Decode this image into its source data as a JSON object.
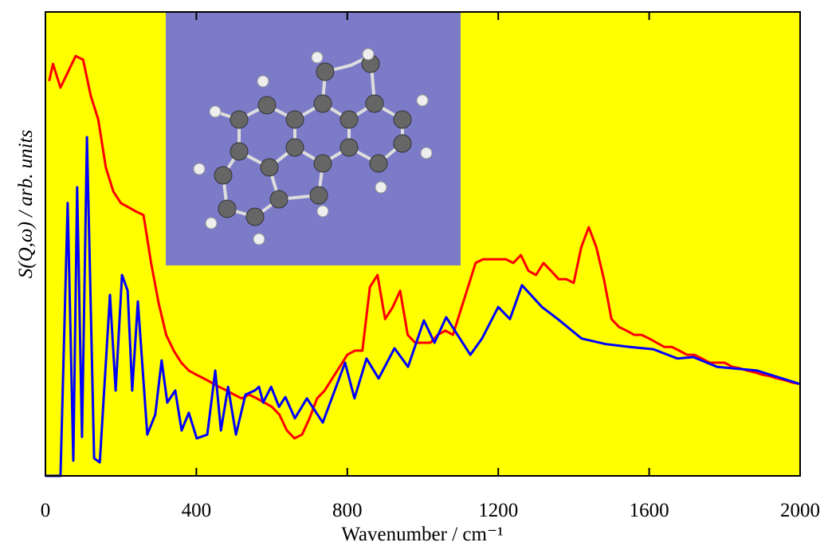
{
  "chart_data": {
    "type": "line",
    "x_label": "Wavenumber / cm⁻¹",
    "y_label": "S(Q,ω) / arb. units",
    "xlim": [
      0,
      2000
    ],
    "ylim": [
      0,
      1
    ],
    "xticks": [
      0,
      400,
      800,
      1200,
      1600,
      2000
    ],
    "background": "#ffff00",
    "series": [
      {
        "color": "#ff0000",
        "x": [
          10,
          20,
          40,
          60,
          80,
          100,
          120,
          140,
          160,
          180,
          200,
          220,
          240,
          260,
          280,
          300,
          320,
          340,
          360,
          380,
          400,
          420,
          440,
          460,
          480,
          500,
          520,
          540,
          560,
          580,
          600,
          620,
          640,
          660,
          680,
          700,
          720,
          740,
          760,
          780,
          800,
          820,
          840,
          860,
          880,
          900,
          920,
          940,
          960,
          980,
          1000,
          1020,
          1040,
          1060,
          1080,
          1100,
          1120,
          1140,
          1160,
          1180,
          1200,
          1220,
          1240,
          1260,
          1280,
          1300,
          1320,
          1340,
          1360,
          1380,
          1400,
          1420,
          1440,
          1460,
          1480,
          1500,
          1520,
          1540,
          1560,
          1580,
          1600,
          1620,
          1640,
          1660,
          1680,
          1700,
          1720,
          1740,
          1760,
          1780,
          1800,
          1820,
          1840,
          1860,
          1880,
          1900,
          1920,
          1940,
          1960,
          1980,
          2000
        ],
        "values": [
          0.851,
          0.888,
          0.837,
          0.871,
          0.905,
          0.897,
          0.82,
          0.768,
          0.665,
          0.613,
          0.588,
          0.579,
          0.57,
          0.562,
          0.459,
          0.373,
          0.304,
          0.27,
          0.244,
          0.227,
          0.218,
          0.21,
          0.201,
          0.192,
          0.184,
          0.175,
          0.167,
          0.175,
          0.167,
          0.158,
          0.149,
          0.132,
          0.098,
          0.081,
          0.089,
          0.124,
          0.167,
          0.184,
          0.21,
          0.235,
          0.261,
          0.27,
          0.27,
          0.407,
          0.433,
          0.338,
          0.363,
          0.399,
          0.304,
          0.287,
          0.287,
          0.287,
          0.304,
          0.313,
          0.304,
          0.356,
          0.407,
          0.459,
          0.467,
          0.467,
          0.467,
          0.467,
          0.459,
          0.476,
          0.442,
          0.433,
          0.459,
          0.442,
          0.424,
          0.424,
          0.416,
          0.493,
          0.536,
          0.493,
          0.424,
          0.338,
          0.321,
          0.313,
          0.304,
          0.304,
          0.296,
          0.287,
          0.278,
          0.278,
          0.27,
          0.261,
          0.261,
          0.253,
          0.244,
          0.244,
          0.244,
          0.235,
          0.232,
          0.227,
          0.223,
          0.218,
          0.215,
          0.21,
          0.206,
          0.201,
          0.198
        ]
      },
      {
        "color": "#0000ff",
        "x": [
          0,
          40,
          59,
          74,
          84,
          97,
          110,
          129,
          144,
          171,
          186,
          203,
          218,
          230,
          245,
          270,
          291,
          308,
          323,
          344,
          361,
          380,
          401,
          429,
          450,
          465,
          484,
          505,
          530,
          555,
          566,
          577,
          598,
          619,
          636,
          661,
          693,
          735,
          794,
          819,
          851,
          883,
          925,
          961,
          1003,
          1031,
          1062,
          1126,
          1157,
          1200,
          1231,
          1263,
          1316,
          1358,
          1421,
          1485,
          1548,
          1611,
          1675,
          1717,
          1780,
          1886,
          2000
        ],
        "values": [
          0,
          0,
          0.588,
          0.033,
          0.622,
          0.084,
          0.73,
          0.038,
          0.029,
          0.39,
          0.184,
          0.433,
          0.399,
          0.184,
          0.376,
          0.089,
          0.132,
          0.249,
          0.158,
          0.184,
          0.098,
          0.136,
          0.081,
          0.089,
          0.227,
          0.098,
          0.192,
          0.089,
          0.175,
          0.184,
          0.192,
          0.158,
          0.192,
          0.149,
          0.17,
          0.124,
          0.167,
          0.115,
          0.244,
          0.167,
          0.253,
          0.21,
          0.275,
          0.235,
          0.335,
          0.287,
          0.342,
          0.261,
          0.296,
          0.364,
          0.338,
          0.411,
          0.364,
          0.338,
          0.296,
          0.284,
          0.278,
          0.273,
          0.253,
          0.256,
          0.235,
          0.227,
          0.198
        ]
      }
    ]
  }
}
